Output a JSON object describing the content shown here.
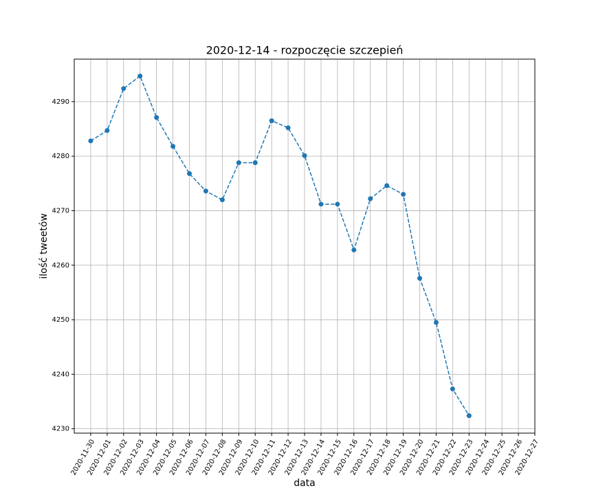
{
  "chart_data": {
    "type": "line",
    "title": "2020-12-14 - rozpoczęcie szczepień",
    "x_label": "data",
    "y_label": "ilość tweetów",
    "x": [
      "2020-11-30",
      "2020-12-01",
      "2020-12-02",
      "2020-12-03",
      "2020-12-04",
      "2020-12-05",
      "2020-12-06",
      "2020-12-07",
      "2020-12-08",
      "2020-12-09",
      "2020-12-10",
      "2020-12-11",
      "2020-12-12",
      "2020-12-13",
      "2020-12-14",
      "2020-12-15",
      "2020-12-16",
      "2020-12-17",
      "2020-12-18",
      "2020-12-19",
      "2020-12-20",
      "2020-12-21",
      "2020-12-22",
      "2020-12-23"
    ],
    "series": [
      {
        "name": "ilość tweetów",
        "color": "#1f77b4",
        "values": [
          4282.8,
          4284.7,
          4292.4,
          4294.7,
          4287.1,
          4281.8,
          4276.8,
          4273.6,
          4272.0,
          4278.8,
          4278.8,
          4286.5,
          4285.2,
          4280.1,
          4271.2,
          4271.2,
          4262.8,
          4272.2,
          4274.6,
          4273.0,
          4257.6,
          4249.5,
          4237.3,
          4232.4
        ]
      }
    ],
    "xlim": [
      "2020-11-29",
      "2020-12-27"
    ],
    "xticks": [
      "2020-11-30",
      "2020-12-01",
      "2020-12-02",
      "2020-12-03",
      "2020-12-04",
      "2020-12-05",
      "2020-12-06",
      "2020-12-07",
      "2020-12-08",
      "2020-12-09",
      "2020-12-10",
      "2020-12-11",
      "2020-12-12",
      "2020-12-13",
      "2020-12-14",
      "2020-12-15",
      "2020-12-16",
      "2020-12-17",
      "2020-12-18",
      "2020-12-19",
      "2020-12-20",
      "2020-12-21",
      "2020-12-22",
      "2020-12-23",
      "2020-12-24",
      "2020-12-25",
      "2020-12-26",
      "2020-12-27"
    ],
    "ylim": [
      4229.2,
      4297.8
    ],
    "yticks": [
      4230,
      4240,
      4250,
      4260,
      4270,
      4280,
      4290
    ],
    "grid": true
  }
}
